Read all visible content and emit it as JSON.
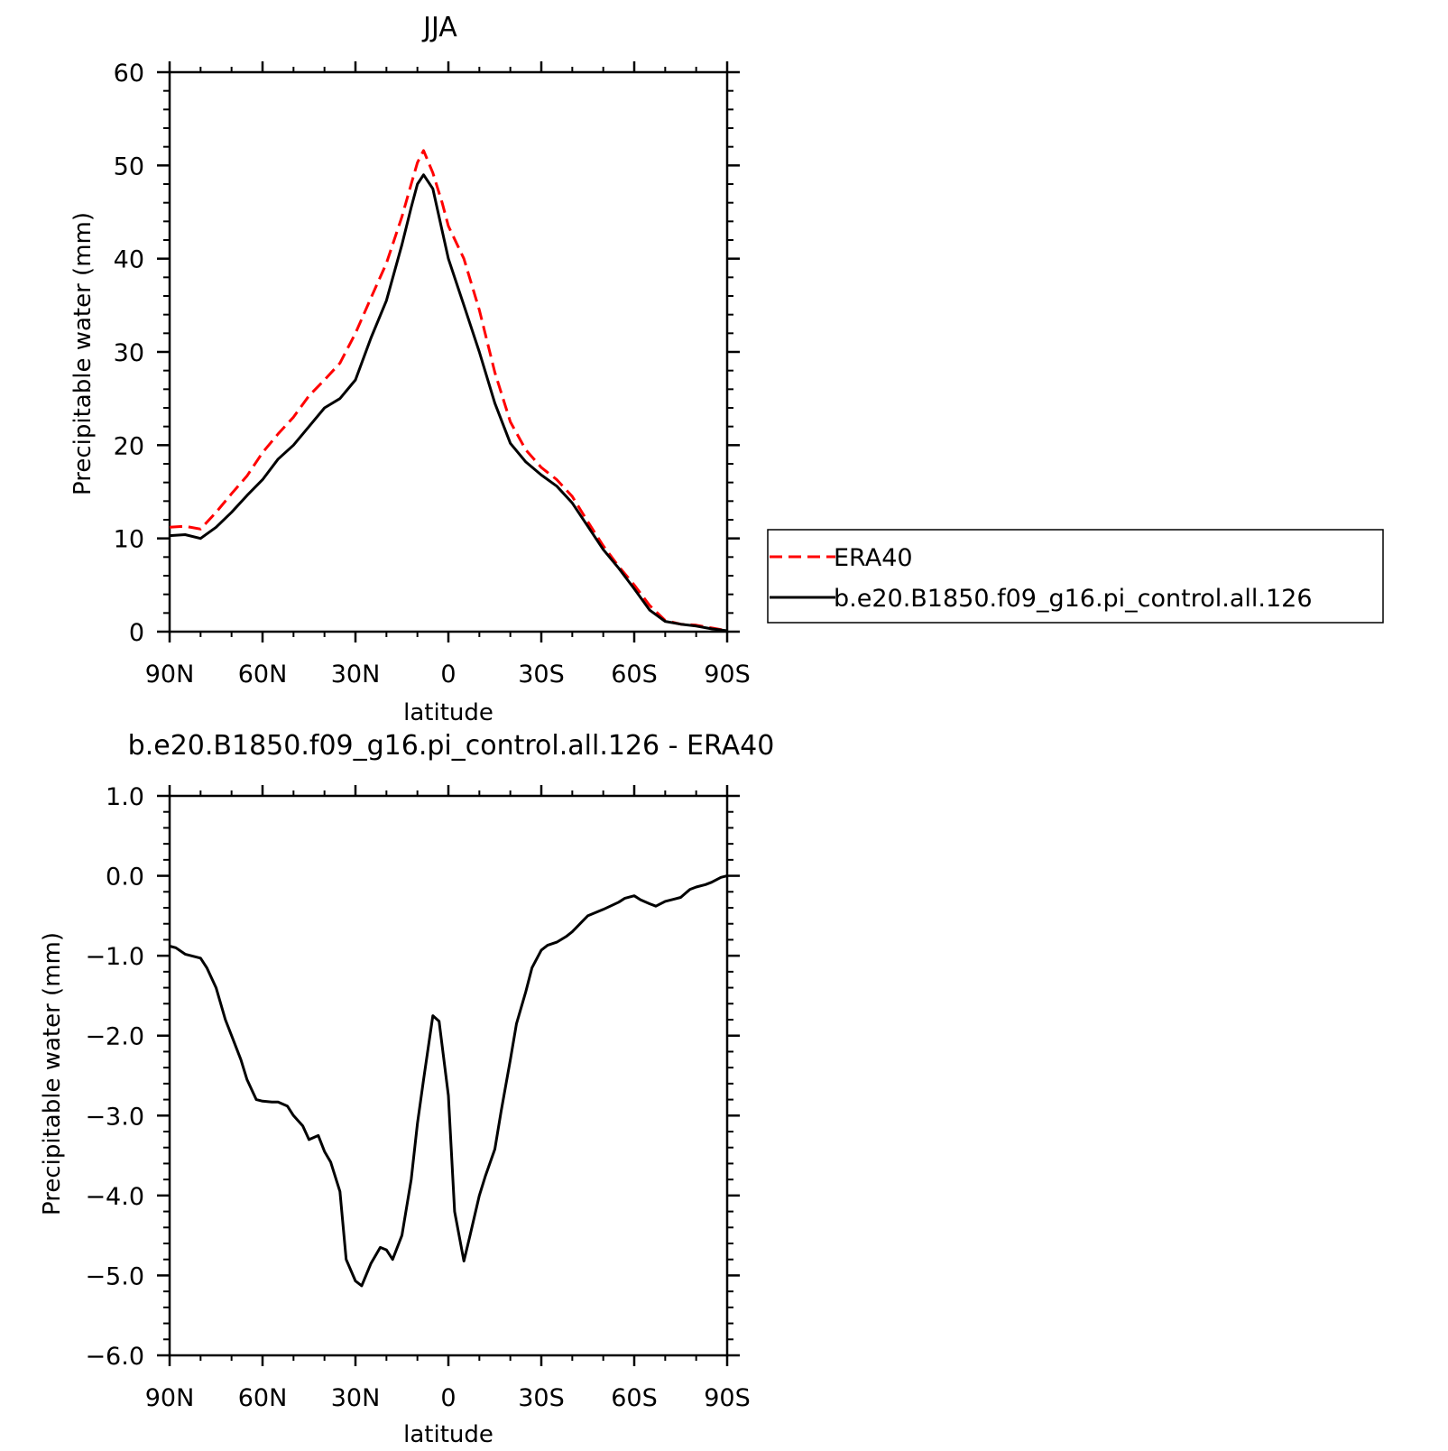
{
  "chart_data": [
    {
      "type": "line",
      "title": "JJA",
      "xlabel": "latitude",
      "ylabel": "Precipitable water (mm)",
      "xlim": [
        90,
        -90
      ],
      "ylim": [
        0,
        60
      ],
      "xticks": [
        90,
        60,
        30,
        0,
        -30,
        -60,
        -90
      ],
      "xtick_labels": [
        "90N",
        "60N",
        "30N",
        "0",
        "30S",
        "60S",
        "90S"
      ],
      "yticks": [
        0,
        10,
        20,
        30,
        40,
        50,
        60
      ],
      "ytick_labels": [
        "0",
        "10",
        "20",
        "30",
        "40",
        "50",
        "60"
      ],
      "legend_position": "right",
      "series": [
        {
          "name": "ERA40",
          "color": "#ff0000",
          "style": "dashed",
          "x": [
            90,
            85,
            80,
            75,
            70,
            65,
            60,
            55,
            50,
            45,
            40,
            35,
            30,
            25,
            20,
            15,
            12,
            10,
            8,
            5,
            2,
            0,
            -5,
            -10,
            -15,
            -20,
            -25,
            -30,
            -35,
            -40,
            -45,
            -50,
            -55,
            -60,
            -65,
            -70,
            -75,
            -80,
            -85,
            -90
          ],
          "y": [
            11.2,
            11.3,
            11.0,
            12.8,
            14.8,
            16.7,
            19.2,
            21.2,
            23.0,
            25.3,
            27.0,
            28.8,
            32.0,
            35.8,
            39.5,
            44.5,
            48.0,
            50.3,
            51.6,
            49.2,
            46.0,
            43.5,
            40.0,
            34.5,
            27.8,
            22.5,
            19.5,
            17.6,
            16.3,
            14.5,
            11.8,
            9.2,
            7.0,
            5.0,
            2.8,
            1.2,
            0.8,
            0.7,
            0.4,
            0.1
          ]
        },
        {
          "name": "b.e20.B1850.f09_g16.pi_control.all.126",
          "color": "#000000",
          "style": "solid",
          "x": [
            90,
            85,
            80,
            75,
            70,
            65,
            60,
            55,
            50,
            45,
            40,
            35,
            30,
            25,
            20,
            15,
            12,
            10,
            8,
            5,
            2,
            0,
            -5,
            -10,
            -15,
            -20,
            -25,
            -30,
            -35,
            -40,
            -45,
            -50,
            -55,
            -60,
            -65,
            -70,
            -75,
            -80,
            -85,
            -90
          ],
          "y": [
            10.3,
            10.4,
            10.0,
            11.2,
            12.8,
            14.6,
            16.3,
            18.5,
            20.0,
            22.0,
            24.0,
            25.0,
            27.0,
            31.5,
            35.5,
            41.5,
            45.5,
            48.0,
            49.0,
            47.5,
            43.0,
            40.0,
            35.0,
            30.0,
            24.5,
            20.2,
            18.2,
            16.8,
            15.6,
            13.8,
            11.3,
            8.8,
            6.8,
            4.6,
            2.3,
            1.1,
            0.8,
            0.6,
            0.3,
            0.1
          ]
        }
      ]
    },
    {
      "type": "line",
      "title": "b.e20.B1850.f09_g16.pi_control.all.126 - ERA40",
      "xlabel": "latitude",
      "ylabel": "Precipitable water (mm)",
      "xlim": [
        90,
        -90
      ],
      "ylim": [
        -6,
        1
      ],
      "xticks": [
        90,
        60,
        30,
        0,
        -30,
        -60,
        -90
      ],
      "xtick_labels": [
        "90N",
        "60N",
        "30N",
        "0",
        "30S",
        "60S",
        "90S"
      ],
      "yticks": [
        1,
        0,
        -1,
        -2,
        -3,
        -4,
        -5,
        -6
      ],
      "ytick_labels": [
        "1.0",
        "0.0",
        "−1.0",
        "−2.0",
        "−3.0",
        "−4.0",
        "−5.0",
        "−6.0"
      ],
      "series": [
        {
          "color": "#000000",
          "style": "solid",
          "x": [
            90,
            88,
            85,
            80,
            78,
            75,
            72,
            70,
            67,
            65,
            62,
            60,
            57,
            55,
            52,
            50,
            47,
            45,
            42,
            40,
            38,
            35,
            33,
            30,
            28,
            25,
            22,
            20,
            18,
            15,
            12,
            10,
            8,
            5,
            3,
            0,
            -2,
            -5,
            -7,
            -10,
            -12,
            -15,
            -17,
            -20,
            -22,
            -25,
            -27,
            -30,
            -32,
            -35,
            -38,
            -40,
            -43,
            -45,
            -50,
            -55,
            -57,
            -60,
            -62,
            -65,
            -67,
            -70,
            -73,
            -75,
            -78,
            -80,
            -83,
            -85,
            -88,
            -90
          ],
          "y": [
            -0.88,
            -0.9,
            -0.98,
            -1.03,
            -1.15,
            -1.4,
            -1.8,
            -2.0,
            -2.3,
            -2.55,
            -2.8,
            -2.82,
            -2.83,
            -2.83,
            -2.88,
            -3.0,
            -3.13,
            -3.3,
            -3.25,
            -3.45,
            -3.58,
            -3.95,
            -4.8,
            -5.07,
            -5.13,
            -4.85,
            -4.65,
            -4.68,
            -4.8,
            -4.5,
            -3.8,
            -3.1,
            -2.55,
            -1.75,
            -1.82,
            -2.75,
            -4.2,
            -4.82,
            -4.5,
            -4.0,
            -3.75,
            -3.42,
            -2.95,
            -2.3,
            -1.85,
            -1.45,
            -1.15,
            -0.93,
            -0.87,
            -0.83,
            -0.76,
            -0.7,
            -0.58,
            -0.5,
            -0.42,
            -0.33,
            -0.28,
            -0.25,
            -0.3,
            -0.35,
            -0.38,
            -0.32,
            -0.29,
            -0.27,
            -0.17,
            -0.14,
            -0.11,
            -0.08,
            -0.02,
            0.0
          ]
        }
      ]
    }
  ]
}
